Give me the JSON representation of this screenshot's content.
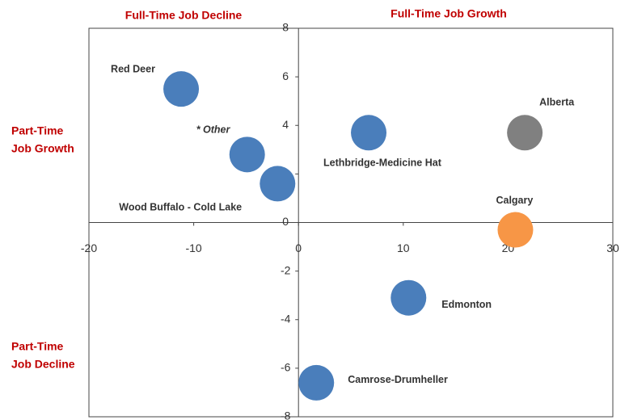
{
  "chart_data": {
    "type": "scatter",
    "quadrant_labels": {
      "top_left": [
        "Full-Time Job Decline"
      ],
      "top_right": [
        "Full-Time Job Growth"
      ],
      "left_upper": [
        "Part-Time",
        "Job Growth"
      ],
      "left_lower": [
        "Part-Time",
        "Job Decline"
      ]
    },
    "labels": [
      "Red Deer",
      "* Other",
      "Wood Buffalo - Cold Lake",
      "Lethbridge-Medicine Hat",
      "Alberta",
      "Calgary",
      "Edmonton",
      "Camrose-Drumheller"
    ],
    "x": [
      -11.2,
      -4.9,
      -2.0,
      6.7,
      21.6,
      20.7,
      10.5,
      1.7
    ],
    "values": [
      5.5,
      2.8,
      1.6,
      3.7,
      3.7,
      -0.3,
      -3.1,
      -6.6
    ],
    "colors": [
      "#4a7ebb",
      "#4a7ebb",
      "#4a7ebb",
      "#4a7ebb",
      "#808080",
      "#f79646",
      "#4a7ebb",
      "#4a7ebb"
    ],
    "xlim": [
      -20,
      30
    ],
    "xticks": [
      -20,
      -10,
      0,
      10,
      20,
      30
    ],
    "ylim": [
      -8,
      8
    ],
    "yticks": [
      -8,
      -6,
      -4,
      -2,
      0,
      2,
      4,
      6,
      8
    ]
  }
}
